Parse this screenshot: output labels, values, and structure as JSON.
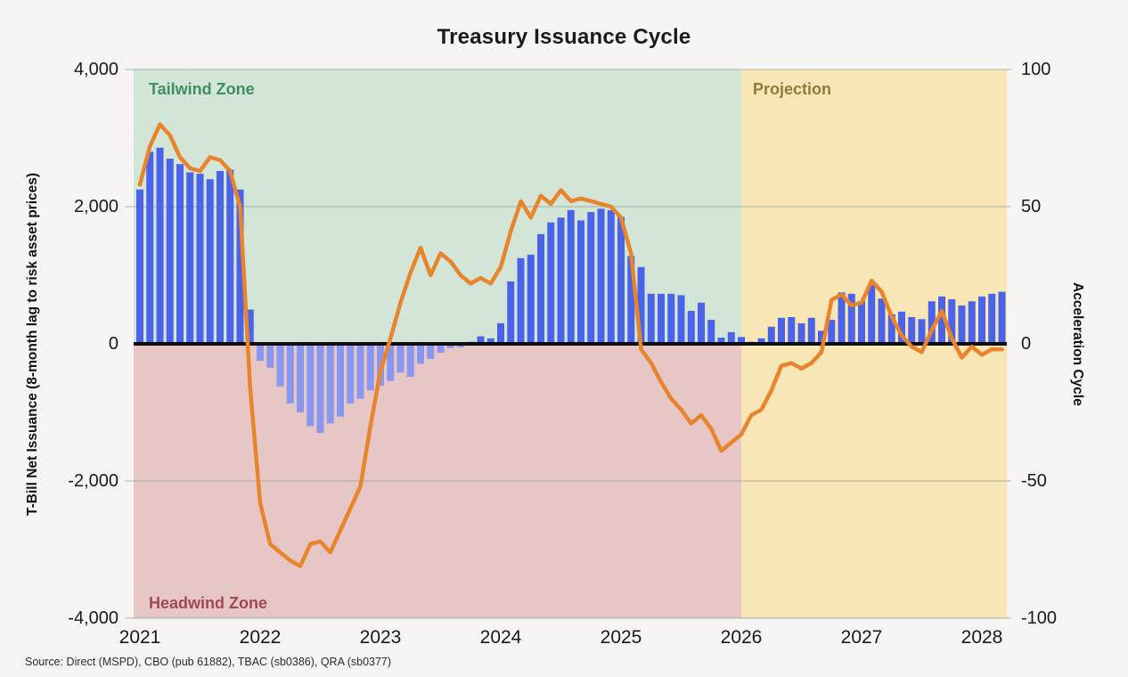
{
  "title": "Treasury Issuance Cycle",
  "source_note": "Source: Direct (MSPD), CBO (pub 61882), TBAC (sb0386), QRA (sb0377)",
  "left_axis": {
    "title": "T-Bill Net Issuance (8-month lag to risk asset prices)",
    "ticks": [
      "4,000",
      "2,000",
      "0",
      "-2,000",
      "-4,000"
    ]
  },
  "right_axis": {
    "title": "Acceleration Cycle",
    "ticks": [
      "100",
      "50",
      "0",
      "-50",
      "-100"
    ]
  },
  "x_axis": {
    "ticks": [
      "2021",
      "2022",
      "2023",
      "2024",
      "2025",
      "2026",
      "2027",
      "2028"
    ]
  },
  "zones": {
    "tailwind": {
      "label": "Tailwind Zone",
      "bg": "#d3e5d7",
      "label_color": "#3f8f62"
    },
    "headwind": {
      "label": "Headwind Zone",
      "bg": "#e6c7c6",
      "label_color": "#a34850"
    },
    "projection": {
      "label": "Projection",
      "bg": "#f8e6b6",
      "label_color": "#8f7c3a",
      "starts_at_year": "2026"
    }
  },
  "colors": {
    "bar_positive": "#4a63e8",
    "bar_negative": "#8997f1",
    "line": "#e8842c",
    "grid": "#98a8a0",
    "zero_line": "#0e0e0e",
    "background": "#f6f5f3",
    "title_color": "#1b1b1b"
  },
  "chart_data": {
    "type": "bar",
    "title": "Treasury Issuance Cycle",
    "x_start": "2021-01",
    "x_frequency": "monthly",
    "x_year_ticks": [
      2021,
      2022,
      2023,
      2024,
      2025,
      2026,
      2027,
      2028
    ],
    "ylim_left": [
      -4000,
      4000
    ],
    "ylim_right": [
      -100,
      100
    ],
    "grid": "horizontal",
    "projection_zone_start": "2026-01",
    "series": [
      {
        "name": "T-Bill Net Issuance",
        "type": "bar",
        "axis": "left",
        "values": [
          2250,
          2800,
          2860,
          2700,
          2620,
          2500,
          2480,
          2400,
          2520,
          2540,
          2250,
          500,
          -250,
          -350,
          -620,
          -870,
          -1000,
          -1200,
          -1300,
          -1160,
          -1060,
          -870,
          -800,
          -680,
          -610,
          -540,
          -420,
          -480,
          -290,
          -220,
          -130,
          -60,
          -50,
          30,
          110,
          80,
          300,
          910,
          1250,
          1300,
          1600,
          1770,
          1840,
          1950,
          1800,
          1920,
          1970,
          1950,
          1850,
          1280,
          1120,
          730,
          730,
          730,
          710,
          480,
          600,
          350,
          90,
          170,
          100,
          30,
          80,
          250,
          380,
          390,
          300,
          380,
          190,
          350,
          750,
          730,
          620,
          860,
          660,
          430,
          470,
          390,
          360,
          620,
          690,
          650,
          560,
          620,
          690,
          730,
          760
        ]
      },
      {
        "name": "Acceleration Cycle",
        "type": "line",
        "axis": "right",
        "values": [
          58,
          72,
          80,
          76,
          68,
          64,
          63,
          68,
          67,
          63,
          50,
          -16,
          -58,
          -73,
          -76,
          -79,
          -81,
          -73,
          -72,
          -76,
          -68,
          -60,
          -52,
          -30,
          -10,
          2,
          15,
          26,
          35,
          25,
          33,
          30,
          25,
          22,
          24,
          22,
          28,
          41,
          52,
          46,
          54,
          51,
          56,
          52,
          53,
          52,
          51,
          50,
          46,
          33,
          -2,
          -7,
          -14,
          -20,
          -24,
          -29,
          -26,
          -31,
          -39,
          -36,
          -33,
          -26,
          -24,
          -17,
          -8,
          -7,
          -9,
          -7,
          -3,
          16,
          18,
          14,
          15,
          23,
          19,
          10,
          3,
          -1,
          -3,
          5,
          12,
          2,
          -5,
          -1,
          -4,
          -2,
          -2
        ]
      }
    ]
  }
}
